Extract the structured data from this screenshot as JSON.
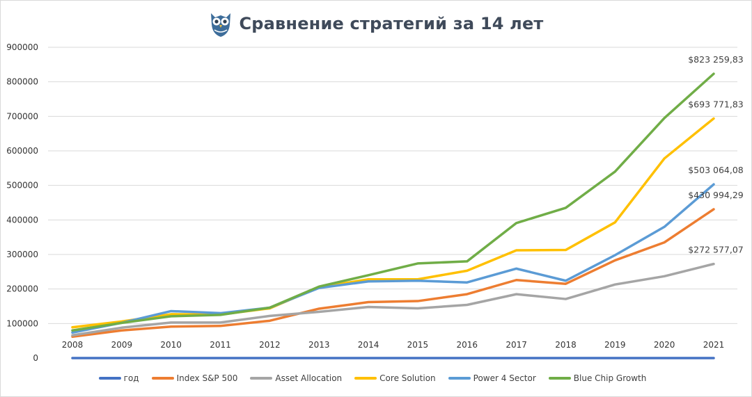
{
  "chart_data": {
    "type": "line",
    "title": "Сравнение стратегий за 14 лет",
    "xlabel": "",
    "ylabel": "",
    "ylim": [
      0,
      900000
    ],
    "yticks": [
      "0",
      "100000",
      "200000",
      "300000",
      "400000",
      "500000",
      "600000",
      "700000",
      "800000",
      "900000"
    ],
    "categories": [
      "2008",
      "2009",
      "2010",
      "2011",
      "2012",
      "2013",
      "2014",
      "2015",
      "2016",
      "2017",
      "2018",
      "2019",
      "2020",
      "2021"
    ],
    "legend_position": "bottom",
    "series": [
      {
        "name": "год",
        "color": "#4472c4",
        "values": [
          0,
          0,
          0,
          0,
          0,
          0,
          0,
          0,
          0,
          0,
          0,
          0,
          0,
          0
        ]
      },
      {
        "name": "Index S&P 500",
        "color": "#ed7d31",
        "values": [
          62000,
          80000,
          91000,
          93000,
          108000,
          143000,
          162000,
          165000,
          185000,
          226000,
          215000,
          283000,
          335000,
          430994.29
        ],
        "end_label": "$430 994,29"
      },
      {
        "name": "Asset Allocation",
        "color": "#a5a5a5",
        "values": [
          66000,
          88000,
          103000,
          103000,
          122000,
          134000,
          148000,
          144000,
          154000,
          185000,
          171000,
          213000,
          237000,
          272577.07
        ],
        "end_label": "$272 577,07"
      },
      {
        "name": "Core Solution",
        "color": "#ffc000",
        "values": [
          89000,
          106000,
          127000,
          126000,
          144000,
          205000,
          228000,
          228000,
          253000,
          312000,
          313000,
          393000,
          578000,
          693771.83
        ],
        "end_label": "$693 771,83"
      },
      {
        "name": "Power 4 Sector",
        "color": "#5b9bd5",
        "values": [
          74000,
          102000,
          136000,
          130000,
          146000,
          203000,
          222000,
          224000,
          219000,
          259000,
          224000,
          298000,
          380000,
          503064.08
        ],
        "end_label": "$503 064,08"
      },
      {
        "name": "Blue Chip Growth",
        "color": "#70ad47",
        "values": [
          80000,
          102000,
          121000,
          125000,
          146000,
          207000,
          240000,
          274000,
          280000,
          391000,
          435000,
          540000,
          695000,
          823259.83
        ],
        "end_label": "$823 259,83"
      }
    ]
  }
}
